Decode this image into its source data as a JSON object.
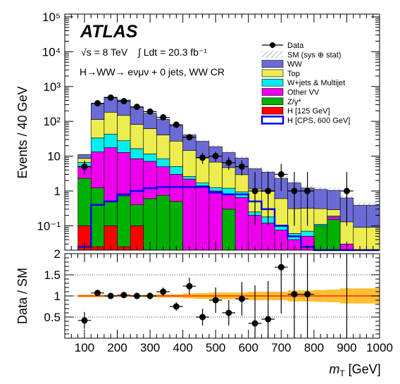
{
  "chart_data": [
    {
      "type": "bar",
      "subtype": "stacked-histogram",
      "experiment": "ATLAS",
      "energy_text": "√s = 8 TeV",
      "lumi_text": "∫ Ldt = 20.3 fb⁻¹",
      "channel_text": "H→WW→ eνμν + 0 jets, WW CR",
      "ylabel": "Events / 40 GeV",
      "xlabel": "m_T [GeV]",
      "yscale": "log",
      "ylim": [
        0.02,
        120000
      ],
      "xlim": [
        40,
        1000
      ],
      "x_ticks": [
        "100",
        "200",
        "300",
        "400",
        "500",
        "600",
        "700",
        "800",
        "900",
        "1000"
      ],
      "y_ticks": [
        "10⁻¹",
        "1",
        "10",
        "10²",
        "10³",
        "10⁴",
        "10⁵"
      ],
      "legend_position": "top-right",
      "bin_edges": [
        80,
        120,
        160,
        200,
        240,
        280,
        320,
        360,
        400,
        440,
        480,
        520,
        560,
        600,
        640,
        680,
        720,
        760,
        800,
        840,
        880,
        920,
        960,
        1000
      ],
      "series": [
        {
          "name": "H [125 GeV]",
          "color": "#ff0000",
          "values": [
            0.1,
            0.025,
            0.1,
            0.025,
            0.1,
            0,
            0,
            0,
            0,
            0,
            0,
            0,
            0,
            0,
            0,
            0,
            0,
            0,
            0,
            0,
            0,
            0,
            0
          ]
        },
        {
          "name": "Z/γ*",
          "color": "#00b000",
          "values": [
            2.2,
            1.2,
            0.4,
            0.7,
            0.3,
            0.6,
            0.75,
            0.5,
            0,
            0,
            0,
            0.3,
            0,
            0,
            0,
            0,
            0,
            0,
            0.1,
            0.15,
            0,
            0,
            0
          ]
        },
        {
          "name": "Other VV",
          "color": "#ee00ee",
          "values": [
            2.8,
            12,
            17,
            12,
            8,
            6.5,
            4.2,
            2.5,
            2.2,
            1.4,
            1.0,
            0.5,
            0.65,
            0.2,
            0.12,
            0.075,
            0.04,
            0.05,
            0,
            0.03,
            0.03,
            0.02,
            0.02
          ]
        },
        {
          "name": "W+jets & Multijet",
          "color": "#00eeee",
          "values": [
            1.5,
            20,
            25,
            15,
            8,
            4.5,
            3.5,
            2.0,
            0.4,
            0.3,
            0.25,
            0.4,
            0.3,
            0.05,
            0.06,
            0.03,
            0.02,
            0.02,
            0.01,
            0.01,
            0,
            0,
            0
          ]
        },
        {
          "name": "Top",
          "color": "#eded50",
          "values": [
            2.0,
            80,
            140,
            120,
            65,
            50,
            32,
            22,
            12,
            7.5,
            5.5,
            3.5,
            2.0,
            0.9,
            0.8,
            0.5,
            0.25,
            0.25,
            0.2,
            0.1,
            0.1,
            0.07,
            0.07
          ]
        },
        {
          "name": "WW",
          "color": "#6b6bd7",
          "values": [
            2.5,
            200,
            310,
            260,
            170,
            110,
            75,
            48,
            26,
            17.5,
            12,
            8.0,
            5.8,
            3.2,
            2.5,
            1.7,
            1.4,
            0.9,
            0.8,
            0.75,
            0.5,
            0.3,
            0.3
          ]
        }
      ],
      "signal_overlay": {
        "name": "H [CPS, 600 GeV]",
        "color": "#0000ee",
        "values": [
          0.025,
          0.4,
          0.5,
          0.8,
          1.0,
          1.2,
          1.3,
          1.3,
          1.3,
          1.3,
          0.9,
          0.8,
          0.8,
          0.5,
          0.3,
          0.1,
          0.05,
          0.025,
          0,
          0,
          0,
          0,
          0
        ]
      },
      "data_points": {
        "name": "Data",
        "x": [
          100,
          140,
          180,
          220,
          260,
          300,
          340,
          380,
          420,
          460,
          500,
          540,
          580,
          620,
          660,
          700,
          740,
          780,
          900
        ],
        "y": [
          5,
          330,
          480,
          380,
          260,
          190,
          130,
          80,
          35,
          9,
          10,
          6.5,
          5,
          1,
          1,
          3,
          1,
          1,
          1
        ],
        "err_up": [
          2.5,
          20,
          25,
          22,
          18,
          15,
          13,
          10,
          7,
          3.5,
          3.5,
          3,
          2.5,
          2.5,
          2.5,
          3,
          2.5,
          2.5,
          2.5
        ],
        "err_down": [
          2,
          20,
          25,
          22,
          18,
          15,
          13,
          10,
          7,
          3,
          3,
          2.5,
          2.2,
          0.9,
          0.9,
          2,
          0.9,
          0.9,
          0.9
        ]
      },
      "legend": [
        "Data",
        "SM (sys ⊕ stat)",
        "WW",
        "Top",
        "W+jets & Multijet",
        "Other VV",
        "Z/γ*",
        "H [125 GeV]",
        "H [CPS, 600 GeV]"
      ],
      "band_label": "SM (sys ⊕ stat)"
    },
    {
      "type": "scatter",
      "subtype": "ratio",
      "ylabel": "Data / SM",
      "xlabel": "m_T [GeV]",
      "ylim": [
        0,
        2
      ],
      "xlim": [
        40,
        1000
      ],
      "y_ticks": [
        "0.5",
        "1",
        "1.5",
        "2"
      ],
      "grid_y": [
        0.5,
        1,
        1.5
      ],
      "x": [
        100,
        140,
        180,
        220,
        260,
        300,
        340,
        380,
        420,
        460,
        500,
        540,
        580,
        620,
        660,
        700,
        740,
        780,
        900
      ],
      "y": [
        0.42,
        1.07,
        1.0,
        1.02,
        1.0,
        1.0,
        1.1,
        0.75,
        1.23,
        0.5,
        0.9,
        0.6,
        0.93,
        0.35,
        0.45,
        1.68,
        1.04,
        1.04,
        0
      ],
      "err": [
        0.2,
        0.06,
        0.05,
        0.06,
        0.07,
        0.08,
        0.1,
        0.1,
        0.2,
        0.2,
        0.3,
        0.3,
        0.4,
        0.9,
        0.9,
        1.1,
        2.5,
        2.5,
        2.5
      ],
      "band_lo": [
        0.97,
        0.97,
        0.98,
        0.98,
        0.98,
        0.97,
        0.96,
        0.96,
        0.94,
        0.93,
        0.92,
        0.92,
        0.92,
        0.9,
        0.9,
        0.9,
        0.87,
        0.87,
        0.86,
        0.85,
        0.82,
        0.82,
        0.82
      ],
      "band_hi": [
        1.03,
        1.03,
        1.02,
        1.02,
        1.02,
        1.03,
        1.04,
        1.04,
        1.06,
        1.07,
        1.08,
        1.08,
        1.08,
        1.1,
        1.1,
        1.1,
        1.13,
        1.13,
        1.14,
        1.15,
        1.18,
        1.18,
        1.18
      ]
    }
  ]
}
